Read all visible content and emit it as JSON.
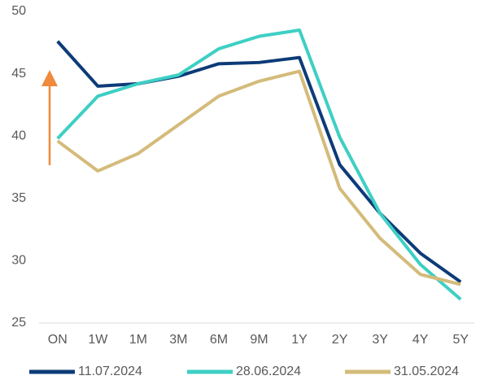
{
  "chart_data": {
    "type": "line",
    "categories": [
      "ON",
      "1W",
      "1M",
      "3M",
      "6M",
      "9M",
      "1Y",
      "2Y",
      "3Y",
      "4Y",
      "5Y"
    ],
    "series": [
      {
        "name": "11.07.2024",
        "color": "#0d3b78",
        "values": [
          47.6,
          44.0,
          44.2,
          44.8,
          45.8,
          45.9,
          46.3,
          37.7,
          33.8,
          30.6,
          28.3
        ]
      },
      {
        "name": "28.06.2024",
        "color": "#3ecfc4",
        "values": [
          39.8,
          43.2,
          44.2,
          44.9,
          47.0,
          48.0,
          48.5,
          39.9,
          33.8,
          29.7,
          26.9
        ]
      },
      {
        "name": "31.05.2024",
        "color": "#d4bb7a",
        "values": [
          39.6,
          37.2,
          38.6,
          40.9,
          43.2,
          44.4,
          45.2,
          35.8,
          31.8,
          28.9,
          28.1
        ]
      }
    ],
    "ylim": [
      25,
      50
    ],
    "yticks": [
      25,
      30,
      35,
      40,
      45,
      50
    ],
    "grid": false,
    "legend": "bottom"
  }
}
